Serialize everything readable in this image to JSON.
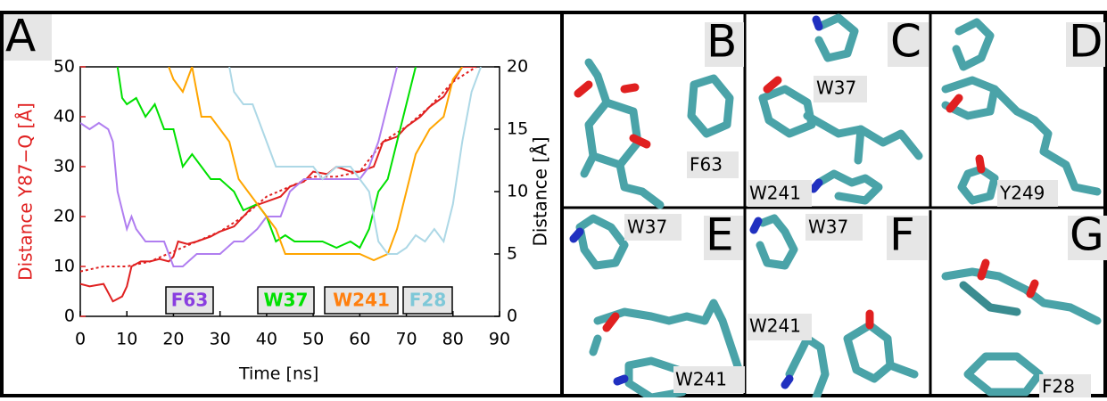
{
  "panel_a_label": "A",
  "chart_data": {
    "type": "line",
    "x_label": "Time [ns]",
    "y_label": "Distance Y87−Q [Å]",
    "y2_label": "Distance [Å]",
    "xlim": [
      0,
      90
    ],
    "xticks": [
      0,
      10,
      20,
      30,
      40,
      50,
      60,
      70,
      80,
      90
    ],
    "ylim": [
      0,
      50
    ],
    "yticks": [
      0,
      10,
      20,
      30,
      40,
      50
    ],
    "y_color": "#e02020",
    "y2lim": [
      0,
      20
    ],
    "y2ticks": [
      0,
      5,
      10,
      15,
      20
    ],
    "legend": "bottom",
    "series": [
      {
        "color": "#e02020",
        "style": "solid",
        "axis": "y",
        "x": [
          0,
          2,
          5,
          7,
          9,
          10,
          11,
          13,
          15,
          17,
          19,
          20,
          21,
          23,
          25,
          28,
          30,
          33,
          35,
          37,
          40,
          43,
          45,
          48,
          50,
          53,
          55,
          58,
          60,
          63,
          65,
          68,
          70,
          73,
          75,
          78,
          80,
          82,
          85
        ],
        "values": [
          6.5,
          6,
          6.5,
          3,
          4,
          6,
          10,
          11,
          11,
          11.5,
          11,
          12,
          15,
          14.5,
          15,
          16,
          17,
          18,
          20,
          22,
          23,
          24,
          26,
          27,
          29,
          28.5,
          30,
          29,
          29,
          30,
          35,
          36,
          38,
          40,
          42,
          44,
          47,
          50,
          50
        ]
      },
      {
        "color": "#e02020",
        "style": "dotted",
        "axis": "y",
        "x": [
          0,
          5,
          10,
          15,
          20,
          25,
          30,
          35,
          40,
          45,
          50,
          55,
          60,
          65,
          70,
          75,
          80,
          85
        ],
        "values": [
          9,
          10,
          10,
          11,
          13,
          15,
          17,
          20,
          24,
          26,
          28,
          28,
          29,
          35,
          38,
          42,
          47,
          50
        ]
      },
      {
        "name": "F63",
        "color": "#b07ef0",
        "label_color": "#8a3fe0",
        "style": "solid",
        "axis": "y2",
        "x": [
          0,
          2,
          4,
          6,
          7,
          8,
          10,
          11,
          12,
          14,
          16,
          18,
          20,
          22,
          25,
          28,
          30,
          33,
          35,
          38,
          40,
          43,
          45,
          48,
          50,
          55,
          60,
          62,
          64,
          66,
          68
        ],
        "values": [
          15.5,
          15,
          15.5,
          15,
          14,
          10,
          7,
          8,
          7,
          6,
          6,
          6,
          4,
          4,
          5,
          5,
          5,
          6,
          6,
          7,
          8,
          8,
          10,
          11,
          11,
          11,
          11,
          12,
          14,
          17,
          20
        ]
      },
      {
        "name": "W37",
        "color": "#00e000",
        "label_color": "#00e000",
        "style": "solid",
        "axis": "y2",
        "x": [
          8,
          9,
          10,
          12,
          14,
          16,
          18,
          20,
          22,
          24,
          26,
          28,
          30,
          33,
          35,
          38,
          40,
          42,
          44,
          46,
          48,
          50,
          52,
          55,
          58,
          60,
          62,
          64,
          66,
          68,
          70,
          72
        ],
        "values": [
          20,
          17.5,
          17,
          17.5,
          16,
          17,
          15,
          15,
          12,
          13,
          12,
          11,
          11,
          10,
          8.5,
          9,
          8,
          6,
          6.5,
          6,
          6,
          6,
          6,
          5.5,
          6,
          5.5,
          7,
          10,
          11,
          14,
          17,
          20
        ]
      },
      {
        "name": "W241",
        "color": "#ffa500",
        "label_color": "#ff7f0e",
        "style": "solid",
        "axis": "y2",
        "x": [
          19,
          20,
          22,
          24,
          26,
          28,
          30,
          32,
          34,
          36,
          38,
          40,
          42,
          44,
          46,
          48,
          50,
          55,
          60,
          63,
          66,
          68,
          70,
          72,
          75,
          78,
          80,
          82
        ],
        "values": [
          20,
          19,
          18,
          20,
          16,
          16,
          15,
          14,
          11,
          10,
          9,
          8,
          7,
          5,
          5,
          5,
          5,
          5,
          5,
          4.5,
          5,
          7,
          10,
          13,
          15,
          16,
          19,
          20
        ]
      },
      {
        "name": "F28",
        "color": "#add8e6",
        "label_color": "#7ec8d8",
        "style": "solid",
        "axis": "y2",
        "x": [
          32,
          33,
          35,
          37,
          39,
          42,
          45,
          48,
          50,
          52,
          55,
          58,
          60,
          62,
          64,
          66,
          68,
          70,
          72,
          74,
          76,
          78,
          80,
          82,
          84,
          86
        ],
        "values": [
          20,
          18,
          17,
          17,
          15,
          12,
          12,
          12,
          12,
          11,
          12,
          12,
          11,
          10,
          6,
          5,
          5,
          5.5,
          6.5,
          6,
          7,
          6,
          9,
          14,
          18,
          20
        ]
      }
    ]
  },
  "panels": [
    {
      "label": "B",
      "residues": [
        "F63"
      ]
    },
    {
      "label": "C",
      "residues": [
        "W37",
        "W241"
      ]
    },
    {
      "label": "D",
      "residues": [
        "Y249"
      ]
    },
    {
      "label": "E",
      "residues": [
        "W37",
        "W241"
      ]
    },
    {
      "label": "F",
      "residues": [
        "W37",
        "W241"
      ]
    },
    {
      "label": "G",
      "residues": [
        "F28"
      ]
    }
  ]
}
